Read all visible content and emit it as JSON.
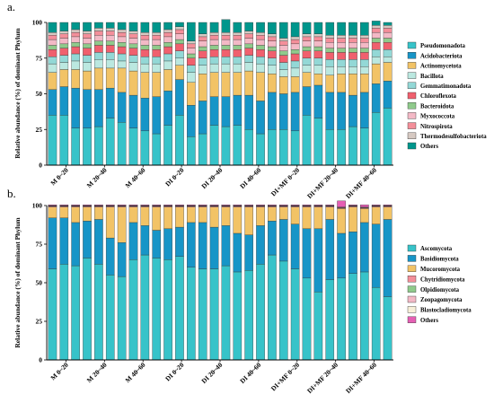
{
  "chart_data": [
    {
      "panel_label": "a.",
      "type": "bar",
      "stacked": true,
      "ylabel": "Relative abundance (%) of dominant Phylum",
      "ylim": [
        0,
        100
      ],
      "yticks": [
        0,
        25,
        50,
        75,
        100
      ],
      "grid": false,
      "legend_position": "right",
      "group_labels": [
        "M 0~20",
        "M 20~40",
        "M 40~60",
        "DI 0~20",
        "DI 20~40",
        "DI 40~60",
        "DI+MF 0~20",
        "DI+MF 20~40",
        "DI+MF 40~60"
      ],
      "colors": [
        "#37c3c9",
        "#1795c7",
        "#f2c366",
        "#bbe8e0",
        "#93d8d6",
        "#f0606e",
        "#8fca8b",
        "#f3b9c6",
        "#f48f9a",
        "#d6c9c2",
        "#00968c"
      ],
      "series": [
        {
          "name": "Pseudomonadota",
          "values": [
            35,
            35,
            26,
            26,
            27,
            33,
            30,
            26,
            24,
            22,
            28,
            35,
            20,
            22,
            28,
            27,
            28,
            25,
            22,
            25,
            25,
            24,
            35,
            33,
            25,
            25,
            27,
            26,
            37,
            40
          ]
        },
        {
          "name": "Acidobacteriota",
          "values": [
            18,
            20,
            28,
            27,
            26,
            21,
            21,
            23,
            23,
            26,
            24,
            25,
            22,
            23,
            20,
            21,
            21,
            24,
            23,
            26,
            25,
            27,
            20,
            23,
            26,
            26,
            22,
            25,
            20,
            19
          ]
        },
        {
          "name": "Actinomycetota",
          "values": [
            12,
            12,
            13,
            13,
            15,
            14,
            17,
            17,
            18,
            17,
            15,
            10,
            16,
            19,
            17,
            17,
            16,
            17,
            20,
            13,
            12,
            11,
            10,
            8,
            12,
            13,
            15,
            13,
            14,
            13
          ]
        },
        {
          "name": "Bacillota",
          "values": [
            6,
            5,
            6,
            6,
            6,
            6,
            5,
            6,
            6,
            6,
            6,
            5,
            7,
            6,
            6,
            6,
            6,
            6,
            6,
            6,
            5,
            6,
            5,
            6,
            6,
            5,
            5,
            5,
            5,
            4
          ]
        },
        {
          "name": "Gemmatimonadota",
          "values": [
            5,
            5,
            5,
            5,
            5,
            5,
            5,
            5,
            5,
            5,
            5,
            5,
            5,
            5,
            5,
            5,
            5,
            5,
            5,
            5,
            5,
            5,
            5,
            5,
            5,
            5,
            5,
            5,
            5,
            5
          ]
        },
        {
          "name": "Chloroflexota",
          "values": [
            5,
            5,
            5,
            5,
            5,
            5,
            5,
            5,
            5,
            5,
            5,
            5,
            5,
            5,
            5,
            5,
            5,
            5,
            5,
            5,
            5,
            5,
            5,
            5,
            5,
            5,
            5,
            5,
            5,
            5
          ]
        },
        {
          "name": "Bacteroidota",
          "values": [
            3,
            3,
            3,
            3,
            3,
            3,
            3,
            3,
            3,
            3,
            3,
            3,
            3,
            3,
            3,
            3,
            3,
            3,
            3,
            3,
            3,
            3,
            3,
            3,
            3,
            3,
            3,
            3,
            3,
            3
          ]
        },
        {
          "name": "Myxococcota",
          "values": [
            4,
            4,
            4,
            4,
            4,
            4,
            4,
            4,
            4,
            4,
            4,
            4,
            4,
            4,
            4,
            4,
            4,
            4,
            4,
            4,
            4,
            4,
            4,
            4,
            4,
            4,
            4,
            4,
            4,
            4
          ]
        },
        {
          "name": "Nitrospirota",
          "values": [
            3,
            3,
            3,
            3,
            3,
            3,
            3,
            3,
            3,
            3,
            3,
            3,
            3,
            3,
            3,
            3,
            3,
            3,
            3,
            3,
            3,
            3,
            3,
            3,
            3,
            3,
            3,
            3,
            3,
            3
          ]
        },
        {
          "name": "Thermodesulfobacteriota",
          "values": [
            2,
            2,
            2,
            2,
            2,
            2,
            2,
            2,
            2,
            2,
            2,
            2,
            2,
            2,
            2,
            2,
            2,
            2,
            2,
            2,
            2,
            2,
            2,
            2,
            2,
            2,
            2,
            2,
            2,
            2
          ]
        },
        {
          "name": "Others",
          "values": [
            7,
            6,
            5,
            6,
            4,
            4,
            5,
            6,
            7,
            7,
            5,
            3,
            13,
            8,
            7,
            9,
            7,
            6,
            7,
            8,
            11,
            10,
            8,
            8,
            9,
            9,
            9,
            9,
            3,
            2
          ]
        }
      ]
    },
    {
      "panel_label": "b.",
      "type": "bar",
      "stacked": true,
      "ylabel": "Relative abundance (%) of dominant Phylum",
      "ylim": [
        0,
        100
      ],
      "yticks": [
        0,
        25,
        50,
        75,
        100
      ],
      "grid": false,
      "legend_position": "right",
      "group_labels": [
        "M 0~20",
        "M 20~40",
        "M 40~60",
        "DI 0~20",
        "DI 20~40",
        "DI 40~60",
        "DI+MF 0~20",
        "DI+MF 20~40",
        "DI+MF 40~60"
      ],
      "colors": [
        "#37c3c9",
        "#1795c7",
        "#f2c366",
        "#f48f9a",
        "#8fca8b",
        "#f3b9c6",
        "#f7efd8",
        "#e55fb4"
      ],
      "series": [
        {
          "name": "Ascomycota",
          "values": [
            59,
            62,
            61,
            66,
            62,
            55,
            54,
            65,
            68,
            66,
            65,
            67,
            60,
            59,
            59,
            61,
            57,
            58,
            62,
            68,
            64,
            59,
            53,
            44,
            52,
            53,
            56,
            57,
            47,
            41
          ]
        },
        {
          "name": "Basidiomycota",
          "values": [
            33,
            30,
            28,
            24,
            29,
            24,
            22,
            24,
            19,
            18,
            20,
            19,
            29,
            30,
            27,
            26,
            25,
            23,
            25,
            22,
            27,
            29,
            32,
            41,
            39,
            29,
            27,
            32,
            41,
            50
          ]
        },
        {
          "name": "Mucoromycota",
          "values": [
            7,
            7,
            10,
            9,
            8,
            20,
            23,
            10,
            12,
            15,
            14,
            13,
            10,
            10,
            13,
            12,
            17,
            18,
            12,
            9,
            8,
            11,
            14,
            14,
            8,
            16,
            16,
            9,
            11,
            8
          ]
        },
        {
          "name": "Chytridiomycota",
          "values": [
            0.5,
            0.5,
            0.5,
            0.5,
            0.5,
            0.5,
            0.5,
            0.5,
            0.5,
            0.5,
            0.5,
            0.5,
            0.5,
            0.5,
            0.5,
            0.5,
            0.5,
            0.5,
            0.5,
            0.5,
            0.5,
            0.5,
            0.5,
            0.5,
            0.5,
            0.5,
            0.5,
            0.5,
            0.5,
            0.5
          ]
        },
        {
          "name": "Olpidiomycota",
          "values": [
            0.2,
            0.2,
            0.2,
            0.2,
            0.2,
            0.2,
            0.2,
            0.2,
            0.2,
            0.2,
            0.2,
            0.2,
            0.2,
            0.2,
            0.2,
            0.2,
            0.2,
            0.2,
            0.2,
            0.2,
            0.2,
            0.2,
            0.2,
            0.2,
            0.2,
            0.2,
            0.2,
            0.2,
            0.2,
            0.2
          ]
        },
        {
          "name": "Zoopagomycota",
          "values": [
            0.2,
            0.2,
            0.2,
            0.2,
            0.2,
            0.2,
            0.2,
            0.2,
            0.2,
            0.2,
            0.2,
            0.2,
            0.2,
            0.2,
            0.2,
            0.2,
            0.2,
            0.2,
            0.2,
            0.2,
            0.2,
            0.2,
            0.2,
            0.2,
            0.2,
            0.2,
            0.2,
            0.2,
            0.2,
            0.2
          ]
        },
        {
          "name": "Blastocladiomycota",
          "values": [
            0.1,
            0.1,
            0.1,
            0.1,
            0.1,
            0.1,
            0.1,
            0.1,
            0.1,
            0.1,
            0.1,
            0.1,
            0.1,
            0.1,
            0.1,
            0.1,
            0.1,
            0.1,
            0.1,
            0.1,
            0.1,
            0.1,
            0.1,
            0.1,
            0.1,
            0.1,
            0.1,
            0.1,
            0.1,
            0.1
          ]
        },
        {
          "name": "Others",
          "values": [
            0.5,
            0.5,
            0.5,
            0.5,
            0.5,
            0.5,
            0.5,
            0.5,
            0.5,
            0.5,
            0.5,
            0.5,
            0.5,
            0.5,
            0.5,
            0.5,
            0.5,
            0.5,
            0.5,
            0.5,
            0.5,
            0.5,
            0.5,
            0.5,
            0.5,
            4,
            0.5,
            1.5,
            0.5,
            0.5
          ]
        }
      ]
    }
  ]
}
